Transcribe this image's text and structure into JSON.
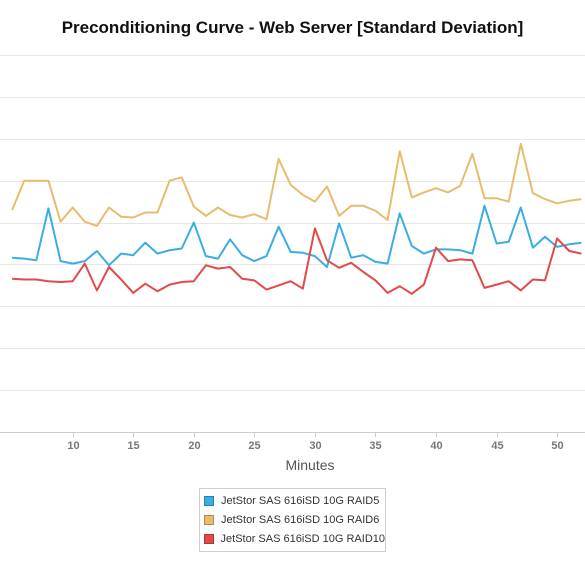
{
  "chart_data": {
    "type": "line",
    "title": "Preconditioning Curve - Web Server [Standard Deviation]",
    "xlabel": "Minutes",
    "ylabel": "",
    "x_ticks": [
      10,
      15,
      20,
      25,
      30,
      35,
      40,
      45,
      50
    ],
    "grid": "horizontal",
    "legend_position": "bottom",
    "x": [
      5,
      6,
      7,
      8,
      9,
      10,
      11,
      12,
      13,
      14,
      15,
      16,
      17,
      18,
      19,
      20,
      21,
      22,
      23,
      24,
      25,
      26,
      27,
      28,
      29,
      30,
      31,
      32,
      33,
      34,
      35,
      36,
      37,
      38,
      39,
      40,
      41,
      42,
      43,
      44,
      45,
      46,
      47,
      48,
      49,
      50,
      51,
      52
    ],
    "series": [
      {
        "name": "JetStor SAS 616iSD 10G RAID5",
        "color": "#3aade2",
        "values": [
          20.8,
          20.7,
          20.5,
          26.7,
          20.4,
          20.1,
          20.4,
          21.6,
          19.9,
          21.3,
          21.1,
          22.6,
          21.3,
          21.7,
          21.9,
          25.0,
          21.0,
          20.7,
          23.0,
          21.1,
          20.4,
          21.0,
          24.5,
          21.5,
          21.4,
          21.0,
          19.7,
          24.9,
          20.8,
          21.1,
          20.3,
          20.1,
          26.1,
          22.2,
          21.3,
          21.8,
          21.8,
          21.7,
          21.3,
          27.0,
          22.5,
          22.7,
          26.8,
          22.0,
          23.3,
          22.1,
          22.4,
          22.6
        ]
      },
      {
        "name": "JetStor SAS 616iSD 10G RAID6",
        "color": "#e8bc6e",
        "values": [
          26.5,
          30.0,
          30.0,
          30.0,
          25.1,
          26.8,
          25.1,
          24.6,
          26.8,
          25.7,
          25.6,
          26.2,
          26.2,
          30.0,
          30.4,
          26.9,
          25.8,
          26.8,
          25.9,
          25.6,
          26.0,
          25.4,
          32.6,
          29.5,
          28.3,
          27.5,
          29.3,
          25.8,
          27.0,
          27.0,
          26.4,
          25.3,
          33.5,
          28.0,
          28.6,
          29.1,
          28.6,
          29.4,
          33.2,
          27.9,
          27.9,
          27.5,
          34.4,
          28.5,
          27.8,
          27.3,
          27.6,
          27.8
        ]
      },
      {
        "name": "JetStor SAS 616iSD 10G RAID10",
        "color": "#e24a4a",
        "values": [
          18.3,
          18.2,
          18.2,
          18.0,
          17.9,
          18.0,
          20.1,
          16.9,
          19.7,
          18.2,
          16.6,
          17.7,
          16.8,
          17.6,
          17.9,
          18.0,
          19.9,
          19.5,
          19.7,
          18.3,
          18.1,
          17.0,
          17.5,
          18.0,
          17.1,
          24.3,
          20.5,
          19.6,
          20.2,
          19.1,
          18.1,
          16.6,
          17.4,
          16.5,
          17.6,
          22.0,
          20.4,
          20.6,
          20.5,
          17.2,
          17.6,
          18.0,
          16.9,
          18.2,
          18.1,
          23.1,
          21.6,
          21.3
        ]
      }
    ]
  }
}
